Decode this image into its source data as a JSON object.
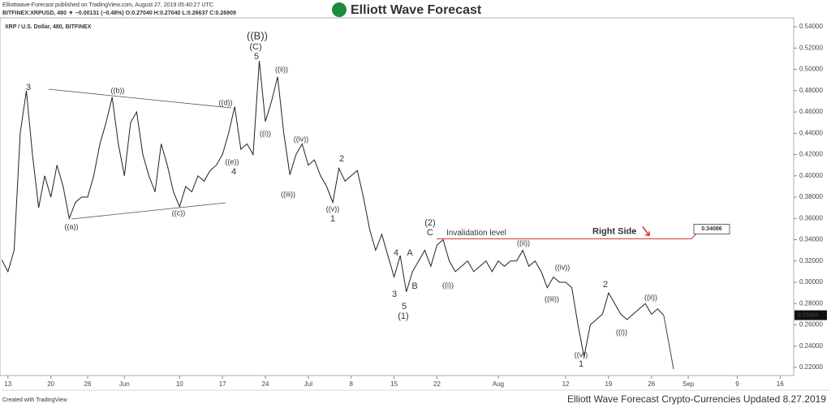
{
  "chart_data": {
    "type": "line",
    "header": {
      "published": "Elliottwave-Forecast published on TradingView.com, August 27, 2019 05:40:27 UTC",
      "quote": "BITFINEX:XRPUSD, 480 ▼ −0.00131 (−0.48%) O:0.27040 H:0.27040 L:0.26637 C:0.26909",
      "brand": "Elliott Wave Forecast"
    },
    "title": "XRP / U.S. Dollar, 480, BITFINEX",
    "footer_left": "Created with TradingView",
    "footer_right": "Elliott Wave Forecast Crypto-Currencies Updated 8.27.2019",
    "series": [
      {
        "name": "XRPUSD",
        "color": "#222222",
        "x": [
          -1,
          0,
          1,
          2,
          3,
          4,
          5,
          6,
          7,
          8,
          9,
          10,
          11,
          12,
          13,
          14,
          15,
          16,
          17,
          18,
          19,
          20,
          21,
          22,
          23,
          24,
          25,
          26,
          27,
          28,
          29,
          30,
          31,
          32,
          33,
          34,
          35,
          36,
          37,
          38,
          39,
          40,
          41,
          42,
          43,
          44,
          45,
          46,
          47,
          48,
          49,
          50,
          51,
          52,
          53,
          54,
          55,
          56,
          57,
          58,
          59,
          60,
          61,
          62,
          63,
          64,
          65,
          66,
          67,
          68,
          69,
          70,
          71,
          72,
          73,
          74,
          75,
          76,
          77,
          78,
          79,
          80,
          81,
          82,
          83,
          84,
          85,
          86,
          87,
          88,
          89,
          90,
          91,
          92,
          93,
          94,
          95,
          96,
          97,
          98,
          99,
          100,
          101,
          102,
          103,
          104,
          105,
          106,
          107
        ],
        "values": [
          0.321,
          0.31,
          0.33,
          0.44,
          0.48,
          0.42,
          0.37,
          0.4,
          0.38,
          0.41,
          0.39,
          0.36,
          0.375,
          0.38,
          0.38,
          0.4,
          0.43,
          0.45,
          0.474,
          0.43,
          0.4,
          0.45,
          0.46,
          0.42,
          0.4,
          0.385,
          0.43,
          0.41,
          0.385,
          0.371,
          0.39,
          0.385,
          0.4,
          0.395,
          0.405,
          0.41,
          0.42,
          0.44,
          0.465,
          0.425,
          0.43,
          0.42,
          0.508,
          0.451,
          0.47,
          0.493,
          0.44,
          0.401,
          0.42,
          0.43,
          0.41,
          0.415,
          0.4,
          0.39,
          0.375,
          0.407,
          0.395,
          0.4,
          0.405,
          0.38,
          0.35,
          0.33,
          0.345,
          0.325,
          0.305,
          0.325,
          0.291,
          0.31,
          0.32,
          0.33,
          0.315,
          0.335,
          0.34,
          0.32,
          0.31,
          0.315,
          0.32,
          0.31,
          0.315,
          0.32,
          0.31,
          0.32,
          0.315,
          0.32,
          0.32,
          0.33,
          0.315,
          0.32,
          0.31,
          0.295,
          0.305,
          0.3,
          0.3,
          0.295,
          0.26,
          0.23,
          0.26,
          0.265,
          0.27,
          0.29,
          0.28,
          0.27,
          0.265,
          0.27,
          0.275,
          0.28,
          0.27,
          0.275,
          0.269
        ]
      }
    ],
    "xlim": [
      -1.3,
      128.2
    ],
    "xticks": [
      {
        "value": 0,
        "label": "13"
      },
      {
        "value": 7,
        "label": "20"
      },
      {
        "value": 13,
        "label": "26"
      },
      {
        "value": 19,
        "label": "Jun"
      },
      {
        "value": 28,
        "label": "10"
      },
      {
        "value": 35,
        "label": "17"
      },
      {
        "value": 42,
        "label": "24"
      },
      {
        "value": 49,
        "label": "Jul"
      },
      {
        "value": 56,
        "label": "8"
      },
      {
        "value": 63,
        "label": "15"
      },
      {
        "value": 70,
        "label": "22"
      },
      {
        "value": 80,
        "label": "Aug"
      },
      {
        "value": 91,
        "label": "12"
      },
      {
        "value": 98,
        "label": "19"
      },
      {
        "value": 105,
        "label": "26"
      },
      {
        "value": 111,
        "label": "Sep"
      },
      {
        "value": 119,
        "label": "9"
      },
      {
        "value": 126,
        "label": "16"
      }
    ],
    "ylim": [
      0.2124,
      0.5484
    ],
    "yticks": [
      {
        "value": 0.22,
        "label": "0.22000"
      },
      {
        "value": 0.24,
        "label": "0.24000"
      },
      {
        "value": 0.26,
        "label": "0.26000"
      },
      {
        "value": 0.28,
        "label": "0.28000"
      },
      {
        "value": 0.3,
        "label": "0.30000"
      },
      {
        "value": 0.32,
        "label": "0.32000"
      },
      {
        "value": 0.34,
        "label": "0.34000"
      },
      {
        "value": 0.36,
        "label": "0.36000"
      },
      {
        "value": 0.38,
        "label": "0.38000"
      },
      {
        "value": 0.4,
        "label": "0.40000"
      },
      {
        "value": 0.42,
        "label": "0.42000"
      },
      {
        "value": 0.44,
        "label": "0.44000"
      },
      {
        "value": 0.46,
        "label": "0.46000"
      },
      {
        "value": 0.48,
        "label": "0.48000"
      },
      {
        "value": 0.5,
        "label": "0.50000"
      },
      {
        "value": 0.52,
        "label": "0.52000"
      },
      {
        "value": 0.54,
        "label": "0.54000"
      }
    ],
    "last_price": {
      "value": 0.26909,
      "label": "0.26909"
    },
    "invalidation": {
      "value": 0.34086,
      "label": "0.34086",
      "text": "Invalidation level",
      "side": "Right Side"
    },
    "annotations": [
      {
        "text": "3",
        "color": "#d0312d"
      },
      {
        "text": "((b))",
        "color": "#444444"
      },
      {
        "text": "((d))",
        "color": "#444444"
      },
      {
        "text": "((a))",
        "color": "#444444"
      },
      {
        "text": "((c))",
        "color": "#444444"
      },
      {
        "text": "((e))",
        "color": "#444444"
      },
      {
        "text": "4",
        "color": "#d0312d"
      },
      {
        "text": "((B))",
        "color": "#111111"
      },
      {
        "text": "(C)",
        "color": "#2b35b5"
      },
      {
        "text": "5",
        "color": "#d0312d"
      },
      {
        "text": "((ii))",
        "color": "#444444"
      },
      {
        "text": "((i))",
        "color": "#444444"
      },
      {
        "text": "((iv))",
        "color": "#444444"
      },
      {
        "text": "((iii))",
        "color": "#444444"
      },
      {
        "text": "2",
        "color": "#d0312d"
      },
      {
        "text": "((v))",
        "color": "#444444"
      },
      {
        "text": "1",
        "color": "#d0312d"
      },
      {
        "text": "(2)",
        "color": "#2b35b5"
      },
      {
        "text": "C",
        "color": "#d0312d"
      },
      {
        "text": "A",
        "color": "#d0312d"
      },
      {
        "text": "4",
        "color": "#d0312d"
      },
      {
        "text": "B",
        "color": "#d0312d"
      },
      {
        "text": "3",
        "color": "#d0312d"
      },
      {
        "text": "5",
        "color": "#d0312d"
      },
      {
        "text": "(1)",
        "color": "#2b35b5"
      },
      {
        "text": "((i))",
        "color": "#444444"
      },
      {
        "text": "((ii))",
        "color": "#444444"
      },
      {
        "text": "((iv))",
        "color": "#444444"
      },
      {
        "text": "((iii))",
        "color": "#444444"
      },
      {
        "text": "2",
        "color": "#d0312d"
      },
      {
        "text": "((ii))",
        "color": "#444444"
      },
      {
        "text": "((i))",
        "color": "#444444"
      },
      {
        "text": "((v))",
        "color": "#444444"
      },
      {
        "text": "1",
        "color": "#d0312d"
      }
    ]
  }
}
